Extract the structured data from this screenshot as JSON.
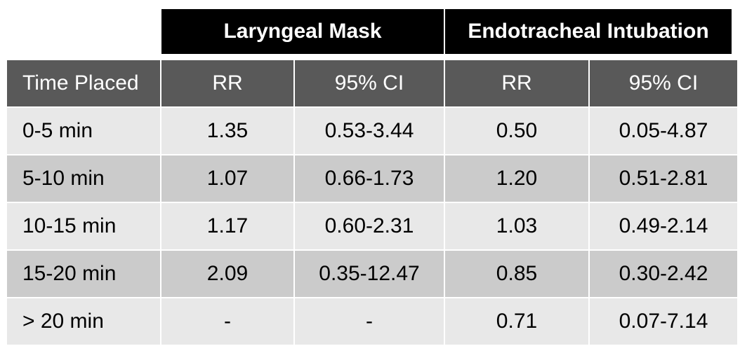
{
  "chart_data": {
    "type": "table",
    "group_headers": [
      "Laryngeal Mask",
      "Endotracheal Intubation"
    ],
    "columns": [
      "Time Placed",
      "RR",
      "95% CI",
      "RR",
      "95% CI"
    ],
    "rows": [
      [
        "0-5 min",
        "1.35",
        "0.53-3.44",
        "0.50",
        "0.05-4.87"
      ],
      [
        "5-10 min",
        "1.07",
        "0.66-1.73",
        "1.20",
        "0.51-2.81"
      ],
      [
        "10-15 min",
        "1.17",
        "0.60-2.31",
        "1.03",
        "0.49-2.14"
      ],
      [
        "15-20 min",
        "2.09",
        "0.35-12.47",
        "0.85",
        "0.30-2.42"
      ],
      [
        "> 20 min",
        "-",
        "-",
        "0.71",
        "0.07-7.14"
      ]
    ]
  },
  "colors": {
    "group_header_bg": "#000000",
    "column_header_bg": "#595959",
    "row_light": "#e8e8e8",
    "row_dark": "#cbcbcb"
  }
}
